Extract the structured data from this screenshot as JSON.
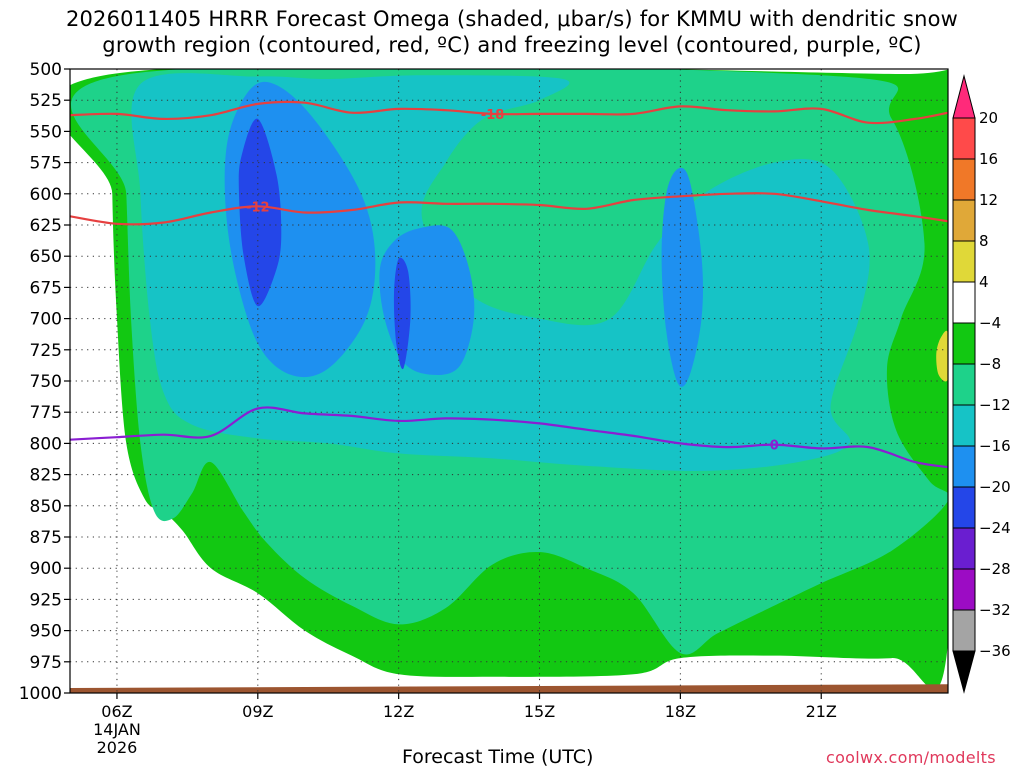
{
  "title_line1": "2026011405 HRRR Forecast Omega (shaded, μbar/s) for KMMU with dendritic snow",
  "title_line2": "growth region (contoured, red, ºC) and freezing level (contoured, purple, ºC)",
  "x_axis_label": "Forecast Time (UTC)",
  "credit": "coolwx.com/modelts",
  "chart_data": {
    "type": "heatmap",
    "title": "2026011405 HRRR Forecast Omega (shaded, μbar/s) for KMMU with dendritic snow growth region (contoured, red, ºC) and freezing level (contoured, purple, ºC)",
    "xlabel": "Forecast Time (UTC)",
    "ylabel": "",
    "y_inverted": true,
    "ylim": [
      1000,
      500
    ],
    "xlim": [
      5.0,
      23.7
    ],
    "y_ticks": [
      500,
      525,
      550,
      575,
      600,
      625,
      650,
      675,
      700,
      725,
      750,
      775,
      800,
      825,
      850,
      875,
      900,
      925,
      950,
      975,
      1000
    ],
    "x_ticks": [
      {
        "x": 6,
        "label": "06Z",
        "sub1": "14JAN",
        "sub2": "2026"
      },
      {
        "x": 9,
        "label": "09Z"
      },
      {
        "x": 12,
        "label": "12Z"
      },
      {
        "x": 15,
        "label": "15Z"
      },
      {
        "x": 18,
        "label": "18Z"
      },
      {
        "x": 21,
        "label": "21Z"
      }
    ],
    "grid": true,
    "colorbar": {
      "levels": [
        20,
        16,
        12,
        8,
        4,
        -4,
        -8,
        -12,
        -16,
        -20,
        -24,
        -28,
        -32,
        -36
      ],
      "colors": [
        "#ff2a7a",
        "#ff4a4a",
        "#f07828",
        "#e0a838",
        "#e0d838",
        "#ffffff",
        "#12c812",
        "#1ed28a",
        "#16c3c6",
        "#1e90f0",
        "#2446e8",
        "#6a1ed0",
        "#9c0cc4",
        "#a4a4a4",
        "#000000"
      ]
    },
    "omega_regions": [
      {
        "level": "-8 to -4",
        "color": "#12c812",
        "points": [
          [
            5.9,
            504
          ],
          [
            22.7,
            504
          ],
          [
            23.7,
            510
          ],
          [
            23.7,
            960
          ],
          [
            22.5,
            972
          ],
          [
            20.0,
            970
          ],
          [
            18.0,
            972
          ],
          [
            17.0,
            985
          ],
          [
            14.0,
            987
          ],
          [
            12.0,
            985
          ],
          [
            11.0,
            970
          ],
          [
            10.0,
            950
          ],
          [
            9.0,
            920
          ],
          [
            8.0,
            900
          ],
          [
            7.4,
            870
          ],
          [
            7.0,
            855
          ],
          [
            6.6,
            845
          ],
          [
            6.2,
            800
          ],
          [
            6.0,
            700
          ],
          [
            5.9,
            600
          ]
        ]
      },
      {
        "level": "-12 to -8",
        "color": "#1ed28a",
        "points": [
          [
            6.1,
            505
          ],
          [
            21.0,
            505
          ],
          [
            22.5,
            540
          ],
          [
            23.2,
            640
          ],
          [
            22.7,
            700
          ],
          [
            22.4,
            740
          ],
          [
            22.6,
            790
          ],
          [
            23.3,
            830
          ],
          [
            23.7,
            846
          ],
          [
            22.5,
            886
          ],
          [
            21.0,
            912
          ],
          [
            20.0,
            930
          ],
          [
            18.8,
            952
          ],
          [
            18.0,
            968
          ],
          [
            17.0,
            920
          ],
          [
            16.0,
            900
          ],
          [
            15.0,
            887
          ],
          [
            14.0,
            897
          ],
          [
            13.0,
            932
          ],
          [
            12.0,
            945
          ],
          [
            11.0,
            930
          ],
          [
            10.0,
            908
          ],
          [
            9.2,
            880
          ],
          [
            8.7,
            855
          ],
          [
            8.0,
            815
          ],
          [
            7.6,
            840
          ],
          [
            7.2,
            860
          ],
          [
            6.8,
            855
          ],
          [
            6.5,
            800
          ],
          [
            6.3,
            700
          ],
          [
            6.2,
            600
          ]
        ]
      },
      {
        "level": "-16 to -12",
        "color": "#16c3c6",
        "points": [
          [
            6.5,
            512
          ],
          [
            9.0,
            506
          ],
          [
            10.5,
            508
          ],
          [
            12.5,
            505
          ],
          [
            15.5,
            508
          ],
          [
            15.0,
            525
          ],
          [
            13.8,
            540
          ],
          [
            13.0,
            575
          ],
          [
            12.5,
            620
          ],
          [
            13.5,
            680
          ],
          [
            15.0,
            700
          ],
          [
            16.5,
            700
          ],
          [
            17.5,
            640
          ],
          [
            18.5,
            600
          ],
          [
            20.0,
            575
          ],
          [
            21.2,
            580
          ],
          [
            22.0,
            640
          ],
          [
            21.8,
            700
          ],
          [
            21.2,
            770
          ],
          [
            21.6,
            800
          ],
          [
            20.5,
            815
          ],
          [
            18.5,
            822
          ],
          [
            16.0,
            818
          ],
          [
            14.0,
            812
          ],
          [
            12.0,
            808
          ],
          [
            10.5,
            800
          ],
          [
            9.0,
            796
          ],
          [
            7.6,
            785
          ],
          [
            7.0,
            760
          ],
          [
            6.7,
            700
          ],
          [
            6.5,
            600
          ]
        ]
      },
      {
        "level": "-20 to -16",
        "color": "#1e90f0",
        "points": [
          [
            8.9,
            514
          ],
          [
            9.5,
            515
          ],
          [
            10.3,
            545
          ],
          [
            11.2,
            600
          ],
          [
            11.5,
            650
          ],
          [
            11.3,
            700
          ],
          [
            10.5,
            740
          ],
          [
            9.7,
            745
          ],
          [
            9.0,
            720
          ],
          [
            8.5,
            660
          ],
          [
            8.3,
            600
          ],
          [
            8.4,
            550
          ]
        ]
      },
      {
        "level": "-20 to -16",
        "color": "#1e90f0",
        "points": [
          [
            12.4,
            628
          ],
          [
            13.1,
            628
          ],
          [
            13.5,
            660
          ],
          [
            13.6,
            700
          ],
          [
            13.3,
            738
          ],
          [
            12.7,
            745
          ],
          [
            12.1,
            735
          ],
          [
            11.7,
            700
          ],
          [
            11.6,
            660
          ],
          [
            11.9,
            638
          ]
        ]
      },
      {
        "level": "-20 to -16",
        "color": "#1e90f0",
        "points": [
          [
            17.95,
            580
          ],
          [
            18.2,
            590
          ],
          [
            18.45,
            650
          ],
          [
            18.45,
            700
          ],
          [
            18.2,
            745
          ],
          [
            17.95,
            752
          ],
          [
            17.7,
            710
          ],
          [
            17.6,
            650
          ],
          [
            17.7,
            600
          ]
        ]
      },
      {
        "level": "-24 to -20",
        "color": "#2446e8",
        "points": [
          [
            9.0,
            540
          ],
          [
            9.4,
            585
          ],
          [
            9.5,
            630
          ],
          [
            9.4,
            660
          ],
          [
            9.0,
            690
          ],
          [
            8.7,
            650
          ],
          [
            8.6,
            600
          ],
          [
            8.65,
            570
          ]
        ]
      },
      {
        "level": "-24 to -20",
        "color": "#2446e8",
        "points": [
          [
            12.0,
            652
          ],
          [
            12.2,
            662
          ],
          [
            12.25,
            700
          ],
          [
            12.1,
            740
          ],
          [
            11.95,
            720
          ],
          [
            11.9,
            680
          ]
        ]
      },
      {
        "level": "4 to 8",
        "color": "#e0d838",
        "points": [
          [
            23.7,
            712
          ],
          [
            23.7,
            748
          ],
          [
            23.5,
            745
          ],
          [
            23.45,
            728
          ],
          [
            23.55,
            715
          ]
        ]
      }
    ],
    "contours": [
      {
        "label": "-18",
        "color": "#e64040",
        "label_at": 14,
        "points": [
          [
            5.0,
            537
          ],
          [
            6.0,
            536
          ],
          [
            7.0,
            540
          ],
          [
            8.0,
            537
          ],
          [
            9.0,
            528
          ],
          [
            10.0,
            527
          ],
          [
            11.0,
            535
          ],
          [
            12.0,
            532
          ],
          [
            13.0,
            533
          ],
          [
            14.0,
            536
          ],
          [
            15.0,
            536
          ],
          [
            16.0,
            536
          ],
          [
            17.0,
            536
          ],
          [
            18.0,
            530
          ],
          [
            19.0,
            533
          ],
          [
            20.0,
            534
          ],
          [
            21.0,
            532
          ],
          [
            22.0,
            543
          ],
          [
            23.0,
            540
          ],
          [
            23.7,
            535
          ]
        ]
      },
      {
        "label": "-12",
        "color": "#e64040",
        "label_at": 9,
        "points": [
          [
            5.0,
            618
          ],
          [
            6.0,
            624
          ],
          [
            7.0,
            623
          ],
          [
            8.0,
            615
          ],
          [
            9.0,
            610
          ],
          [
            10.0,
            615
          ],
          [
            11.0,
            613
          ],
          [
            12.0,
            607
          ],
          [
            13.0,
            608
          ],
          [
            14.0,
            608
          ],
          [
            15.0,
            609
          ],
          [
            16.0,
            612
          ],
          [
            17.0,
            605
          ],
          [
            18.0,
            602
          ],
          [
            19.0,
            600
          ],
          [
            20.0,
            600
          ],
          [
            21.0,
            606
          ],
          [
            22.0,
            613
          ],
          [
            23.0,
            618
          ],
          [
            23.7,
            622
          ]
        ]
      },
      {
        "label": "0",
        "color": "#8a1ed2",
        "label_at": 20,
        "points": [
          [
            5.0,
            797
          ],
          [
            6.0,
            795
          ],
          [
            7.0,
            793
          ],
          [
            8.0,
            794
          ],
          [
            9.0,
            772
          ],
          [
            10.0,
            776
          ],
          [
            11.0,
            778
          ],
          [
            12.0,
            782
          ],
          [
            13.0,
            780
          ],
          [
            14.0,
            781
          ],
          [
            15.0,
            784
          ],
          [
            16.0,
            789
          ],
          [
            17.0,
            794
          ],
          [
            18.0,
            800
          ],
          [
            19.0,
            803
          ],
          [
            20.0,
            801
          ],
          [
            21.0,
            804
          ],
          [
            22.0,
            803
          ],
          [
            23.0,
            815
          ],
          [
            23.7,
            819
          ]
        ]
      }
    ],
    "surface_band": {
      "color": "#9c5530",
      "top_left": 996,
      "top_right": 993
    }
  }
}
